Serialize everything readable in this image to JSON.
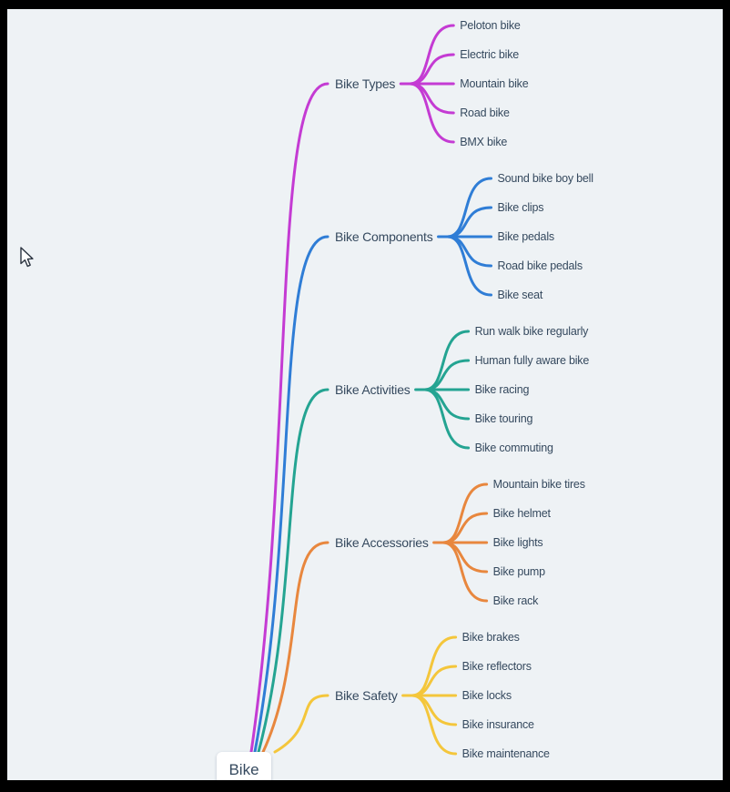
{
  "root": {
    "label": "Bike"
  },
  "branches": [
    {
      "label": "Bike Types",
      "color": "#c43bd3",
      "children": [
        "Peloton bike",
        "Electric bike",
        "Mountain bike",
        "Road bike",
        "BMX bike"
      ]
    },
    {
      "label": "Bike Components",
      "color": "#2f7dd6",
      "children": [
        "Sound bike boy bell",
        "Bike clips",
        "Bike pedals",
        "Road bike pedals",
        "Bike seat"
      ]
    },
    {
      "label": "Bike Activities",
      "color": "#24a492",
      "children": [
        "Run walk bike regularly",
        "Human fully aware bike",
        "Bike racing",
        "Bike touring",
        "Bike commuting"
      ]
    },
    {
      "label": "Bike Accessories",
      "color": "#e8873e",
      "children": [
        "Mountain bike tires",
        "Bike helmet",
        "Bike lights",
        "Bike pump",
        "Bike rack"
      ]
    },
    {
      "label": "Bike Safety",
      "color": "#f4c63b",
      "children": [
        "Bike brakes",
        "Bike reflectors",
        "Bike locks",
        "Bike insurance",
        "Bike maintenance"
      ]
    }
  ],
  "colors": {
    "background": "#eef2f5",
    "frame": "#000000",
    "text": "#35495e",
    "card_background": "#ffffff",
    "hidden_branch_stub": "#e2504f"
  }
}
